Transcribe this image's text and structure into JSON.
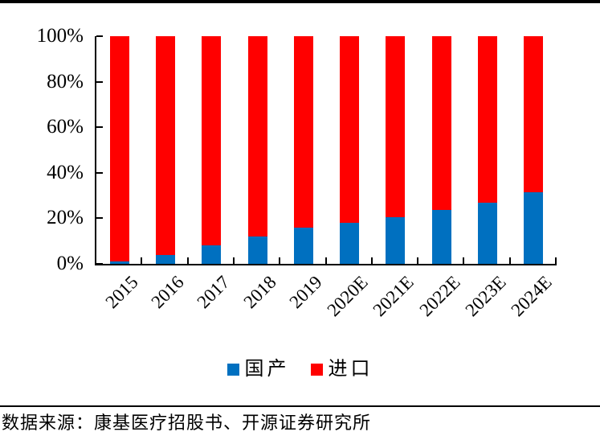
{
  "page": {
    "source_note": "数据来源：康基医疗招股书、开源证券研究所"
  },
  "chart_data": {
    "type": "bar",
    "stacked": true,
    "percent_stacked": true,
    "title": "",
    "xlabel": "",
    "ylabel": "",
    "categories": [
      "2015",
      "2016",
      "2017",
      "2018",
      "2019",
      "2020E",
      "2021E",
      "2022E",
      "2023E",
      "2024E"
    ],
    "series": [
      {
        "name": "国产",
        "color": "#0070C0",
        "values": [
          1,
          4,
          8,
          12,
          16,
          18,
          20.5,
          23.5,
          27,
          31.5
        ]
      },
      {
        "name": "进口",
        "color": "#FF0000",
        "values": [
          99,
          96,
          92,
          88,
          84,
          82,
          79.5,
          76.5,
          73,
          68.5
        ]
      }
    ],
    "ylim": [
      0,
      100
    ],
    "y_ticks": [
      "0%",
      "20%",
      "40%",
      "60%",
      "80%",
      "100%"
    ],
    "y_tick_values": [
      0,
      20,
      40,
      60,
      80,
      100
    ],
    "grid": false,
    "legend_position": "bottom",
    "colors": {
      "axis": "#000000",
      "background": "#FFFFFF"
    }
  }
}
